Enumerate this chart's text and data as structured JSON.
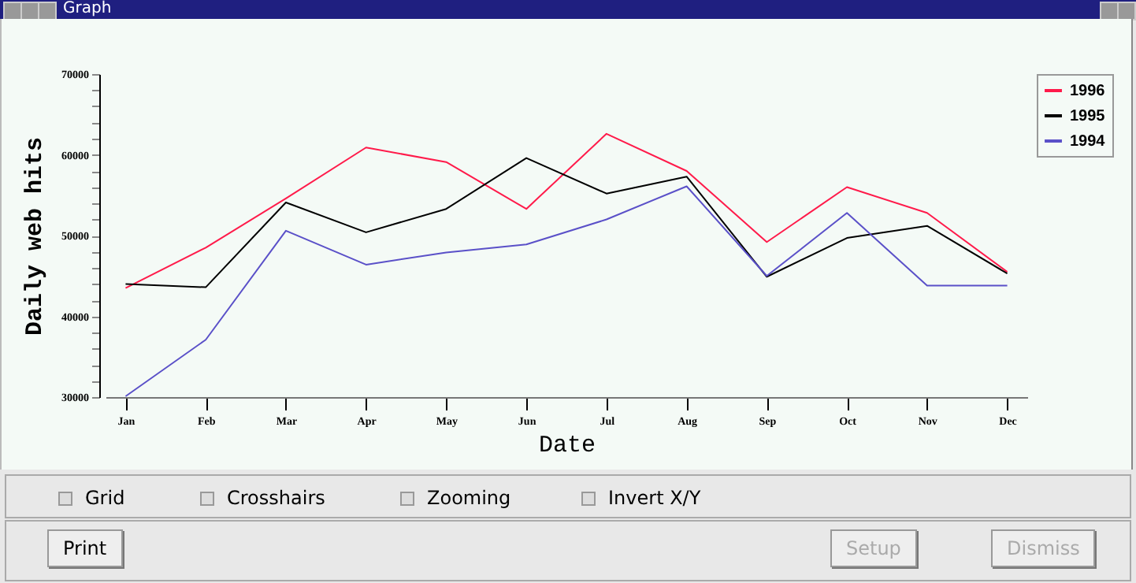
{
  "chart_data": {
    "type": "line",
    "title": "Graph",
    "xlabel": "Date",
    "ylabel": "Daily web hits",
    "categories": [
      "Jan",
      "Feb",
      "Mar",
      "Apr",
      "May",
      "Jun",
      "Jul",
      "Aug",
      "Sep",
      "Oct",
      "Nov",
      "Dec"
    ],
    "series": [
      {
        "name": "1996",
        "color": "#ff1a4a",
        "values": [
          43500,
          48500,
          54600,
          60900,
          59100,
          53300,
          62600,
          58000,
          49200,
          56000,
          52800,
          45500
        ]
      },
      {
        "name": "1995",
        "color": "#000000",
        "values": [
          44000,
          43600,
          54100,
          50400,
          53300,
          59600,
          55200,
          57300,
          44900,
          49700,
          51200,
          45300
        ]
      },
      {
        "name": "1994",
        "color": "#5a50c8",
        "values": [
          30100,
          37100,
          50600,
          46400,
          47900,
          48900,
          52000,
          56100,
          45000,
          52800,
          43800,
          43800
        ]
      }
    ],
    "ylim": [
      30000,
      70000
    ],
    "yticks": [
      30000,
      {
        "value": 32000,
        "label": null
      },
      {
        "value": 34000,
        "label": null
      },
      {
        "value": 36000,
        "label": null
      },
      {
        "value": 38000,
        "label": null
      },
      40000,
      {
        "value": 42000,
        "label": null
      },
      {
        "value": 44000,
        "label": null
      },
      {
        "value": 46000,
        "label": null
      },
      {
        "value": 48000,
        "label": null
      },
      50000,
      {
        "value": 52000,
        "label": null
      },
      {
        "value": 54000,
        "label": null
      },
      {
        "value": 56000,
        "label": null
      },
      {
        "value": 58000,
        "label": null
      },
      60000,
      {
        "value": 62000,
        "label": null
      },
      {
        "value": 64000,
        "label": null
      },
      {
        "value": 66000,
        "label": null
      },
      {
        "value": 68000,
        "label": null
      },
      70000
    ],
    "legend": "top right",
    "marker": "none",
    "line_style": "solid",
    "annotations": [
      "Grid",
      "Crosshairs",
      "Zooming",
      "Invert X/Y",
      "Print",
      "Setup",
      "Dismiss"
    ]
  }
}
